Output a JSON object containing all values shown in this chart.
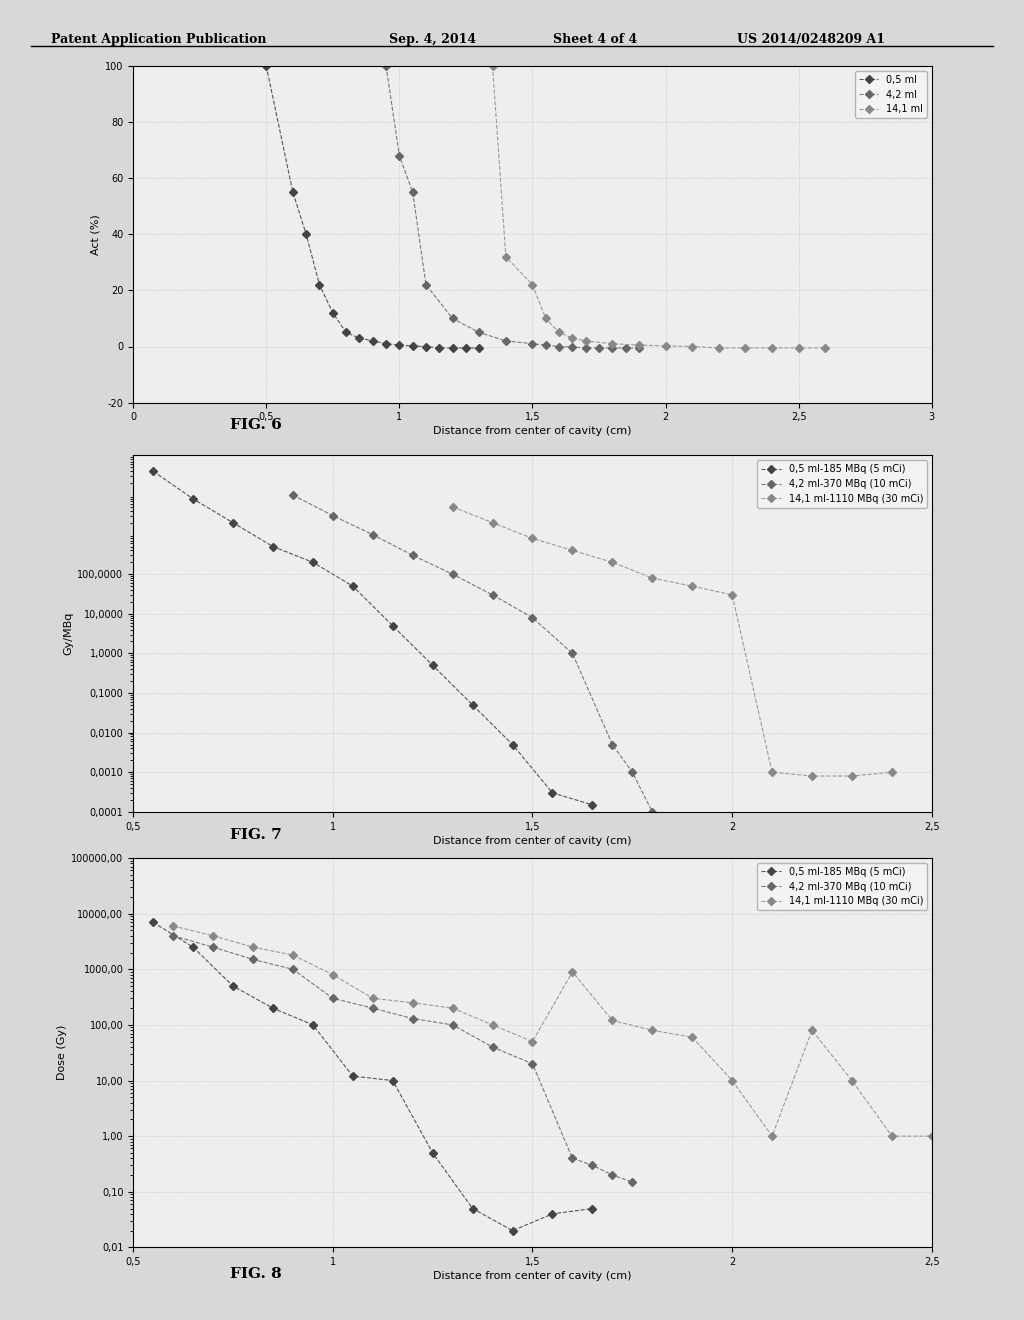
{
  "page_header": "Patent Application Publication    Sep. 4, 2014    Sheet 4 of 4        US 2014/0248209 A1",
  "background_color": "#e8e8e8",
  "plot_bg_color": "#f0f0f0",
  "grid_color": "#cccccc",
  "fig6": {
    "title": "",
    "xlabel": "Distance from center of cavity (cm)",
    "ylabel": "Act (%)",
    "xlim": [
      0,
      3
    ],
    "ylim": [
      -20,
      100
    ],
    "xticks": [
      0,
      0.5,
      1,
      1.5,
      2,
      2.5,
      3
    ],
    "yticks": [
      -20,
      0,
      20,
      40,
      60,
      80,
      100
    ],
    "legend_labels": [
      "0,5 ml",
      "4,2 ml",
      "14,1 ml"
    ],
    "series1_x": [
      0.5,
      0.6,
      0.7,
      0.8,
      0.9,
      1.0,
      1.05,
      1.1,
      1.15,
      1.2,
      1.25,
      1.3,
      1.35,
      1.4
    ],
    "series1_y": [
      100,
      55,
      22,
      5,
      2,
      0.5,
      0.2,
      0,
      -0.5,
      -0.5,
      -0.5,
      -0.5,
      -0.5,
      -0.5
    ],
    "series2_x": [
      0.9,
      1.0,
      1.1,
      1.2,
      1.3,
      1.4,
      1.5,
      1.55,
      1.6,
      1.65,
      1.7,
      1.75,
      1.8,
      1.85,
      1.9
    ],
    "series2_y": [
      100,
      68,
      22,
      10,
      5,
      2,
      1,
      0.5,
      0,
      -0.2,
      -0.5,
      -0.5,
      -0.5,
      -0.5,
      -0.5
    ],
    "series3_x": [
      1.35,
      1.4,
      1.5,
      1.6,
      1.7,
      1.8,
      1.9,
      2.0,
      2.1,
      2.2,
      2.3,
      2.4,
      2.5,
      2.6
    ],
    "series3_y": [
      100,
      32,
      22,
      10,
      5,
      3,
      2,
      1,
      0.5,
      0,
      -0.2,
      -0.5,
      -0.5,
      -0.5
    ]
  },
  "fig7": {
    "title": "",
    "xlabel": "Distance from center of cavity (cm)",
    "ylabel": "Gy/MBq",
    "xlim": [
      0.5,
      2.5
    ],
    "ylim_log": [
      0.0001,
      100000
    ],
    "xticks": [
      0.5,
      1,
      1.5,
      2,
      2.5
    ],
    "ytick_labels": [
      "0,0001",
      "0,0010",
      "0,0100",
      "0,1000",
      "1,0000",
      "10,0000",
      "100,0000"
    ],
    "ytick_vals": [
      0.0001,
      0.001,
      0.01,
      0.1,
      1.0,
      10.0,
      100.0
    ],
    "legend_labels": [
      "0,5 ml-185 MBq (5 mCi)",
      "4,2 ml-370 MBq (10 mCi)",
      "14,1 ml-1110 MBq (30 mCi)"
    ],
    "series1_x": [
      0.55,
      0.65,
      0.75,
      0.85,
      0.95,
      1.05,
      1.15,
      1.25,
      1.35,
      1.45,
      1.55,
      1.65
    ],
    "series1_y": [
      50000,
      10000,
      3000,
      900,
      300,
      60,
      10,
      1,
      0.1,
      0.02,
      0.003,
      0.0002
    ],
    "series2_x": [
      0.9,
      1.0,
      1.1,
      1.2,
      1.3,
      1.4,
      1.5,
      1.6,
      1.7,
      1.8
    ],
    "series2_y": [
      10000,
      4000,
      1500,
      600,
      200,
      100,
      30,
      0.5,
      0.001,
      0.0001
    ],
    "series3_x": [
      1.3,
      1.4,
      1.5,
      1.6,
      1.7,
      1.8,
      1.9,
      2.0,
      2.1,
      2.2,
      2.3,
      2.4
    ],
    "series3_y": [
      5000,
      2000,
      1000,
      500,
      200,
      100,
      50,
      0.01,
      0.001,
      0.0001,
      0.00015,
      0.001
    ]
  },
  "fig8": {
    "title": "",
    "xlabel": "Distance from center of cavity (cm)",
    "ylabel": "Dose (Gy)",
    "xlim": [
      0.5,
      2.5
    ],
    "ylim_log": [
      0.01,
      100000
    ],
    "xticks": [
      0.5,
      1,
      1.5,
      2,
      2.5
    ],
    "ytick_labels": [
      "0,01",
      "0,10",
      "1,00",
      "10,00",
      "100,00",
      "1000,00",
      "10000,00",
      "100000,00"
    ],
    "ytick_vals": [
      0.01,
      0.1,
      1.0,
      10.0,
      100.0,
      1000.0,
      10000.0,
      100000.0
    ],
    "legend_labels": [
      "0,5 ml-185 MBq (5 mCi)",
      "4,2 ml-370 MBq (10 mCi)",
      "14,1 ml-1110 MBq (30 mCi)"
    ],
    "series1_x": [
      0.55,
      0.65,
      0.75,
      0.85,
      0.95,
      1.05,
      1.15,
      1.25,
      1.35,
      1.45,
      1.55,
      1.65
    ],
    "series1_y": [
      8000,
      3000,
      700,
      300,
      100,
      15,
      11,
      0.5,
      0.05,
      0.01,
      0.005,
      0.05
    ],
    "series2_x": [
      0.6,
      0.7,
      0.8,
      0.9,
      1.0,
      1.1,
      1.2,
      1.3,
      1.4,
      1.5,
      1.6,
      1.7,
      1.75
    ],
    "series2_y": [
      5000,
      3000,
      2000,
      1500,
      400,
      200,
      150,
      100,
      50,
      30,
      0.5,
      0.3,
      0.2
    ],
    "series3_x": [
      0.6,
      0.7,
      0.8,
      0.9,
      1.0,
      1.1,
      1.2,
      1.3,
      1.4,
      1.5,
      1.6,
      1.7,
      1.8,
      1.9,
      2.0,
      2.1,
      2.2,
      2.3,
      2.4,
      2.5
    ],
    "series3_y": [
      7000,
      5000,
      3000,
      2000,
      1000,
      400,
      300,
      200,
      100,
      50,
      1000,
      150,
      100,
      80,
      10,
      1,
      0.1,
      0.01,
      1,
      1
    ]
  }
}
